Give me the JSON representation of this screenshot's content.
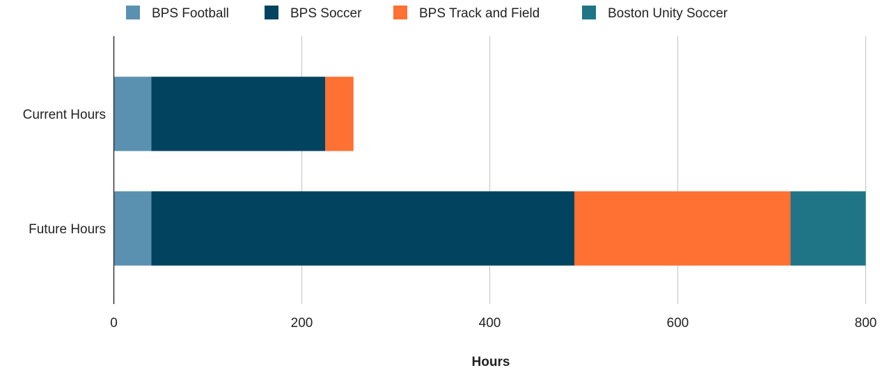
{
  "chart_data": {
    "type": "bar",
    "orientation": "horizontal",
    "stacked": true,
    "categories": [
      "Current Hours",
      "Future Hours"
    ],
    "series": [
      {
        "name": "BPS Football",
        "color": "#5a90b0",
        "values": [
          40,
          40
        ]
      },
      {
        "name": "BPS Soccer",
        "color": "#024360",
        "values": [
          185,
          450
        ]
      },
      {
        "name": "BPS Track and Field",
        "color": "#ff7033",
        "values": [
          30,
          230
        ]
      },
      {
        "name": "Boston Unity Soccer",
        "color": "#1f7585",
        "values": [
          0,
          80
        ]
      }
    ],
    "xlabel": "Hours",
    "ylabel": "",
    "xlim": [
      0,
      800
    ],
    "xticks": [
      "0",
      "200",
      "400",
      "600",
      "800"
    ],
    "grid": "vertical",
    "legend": "top"
  }
}
